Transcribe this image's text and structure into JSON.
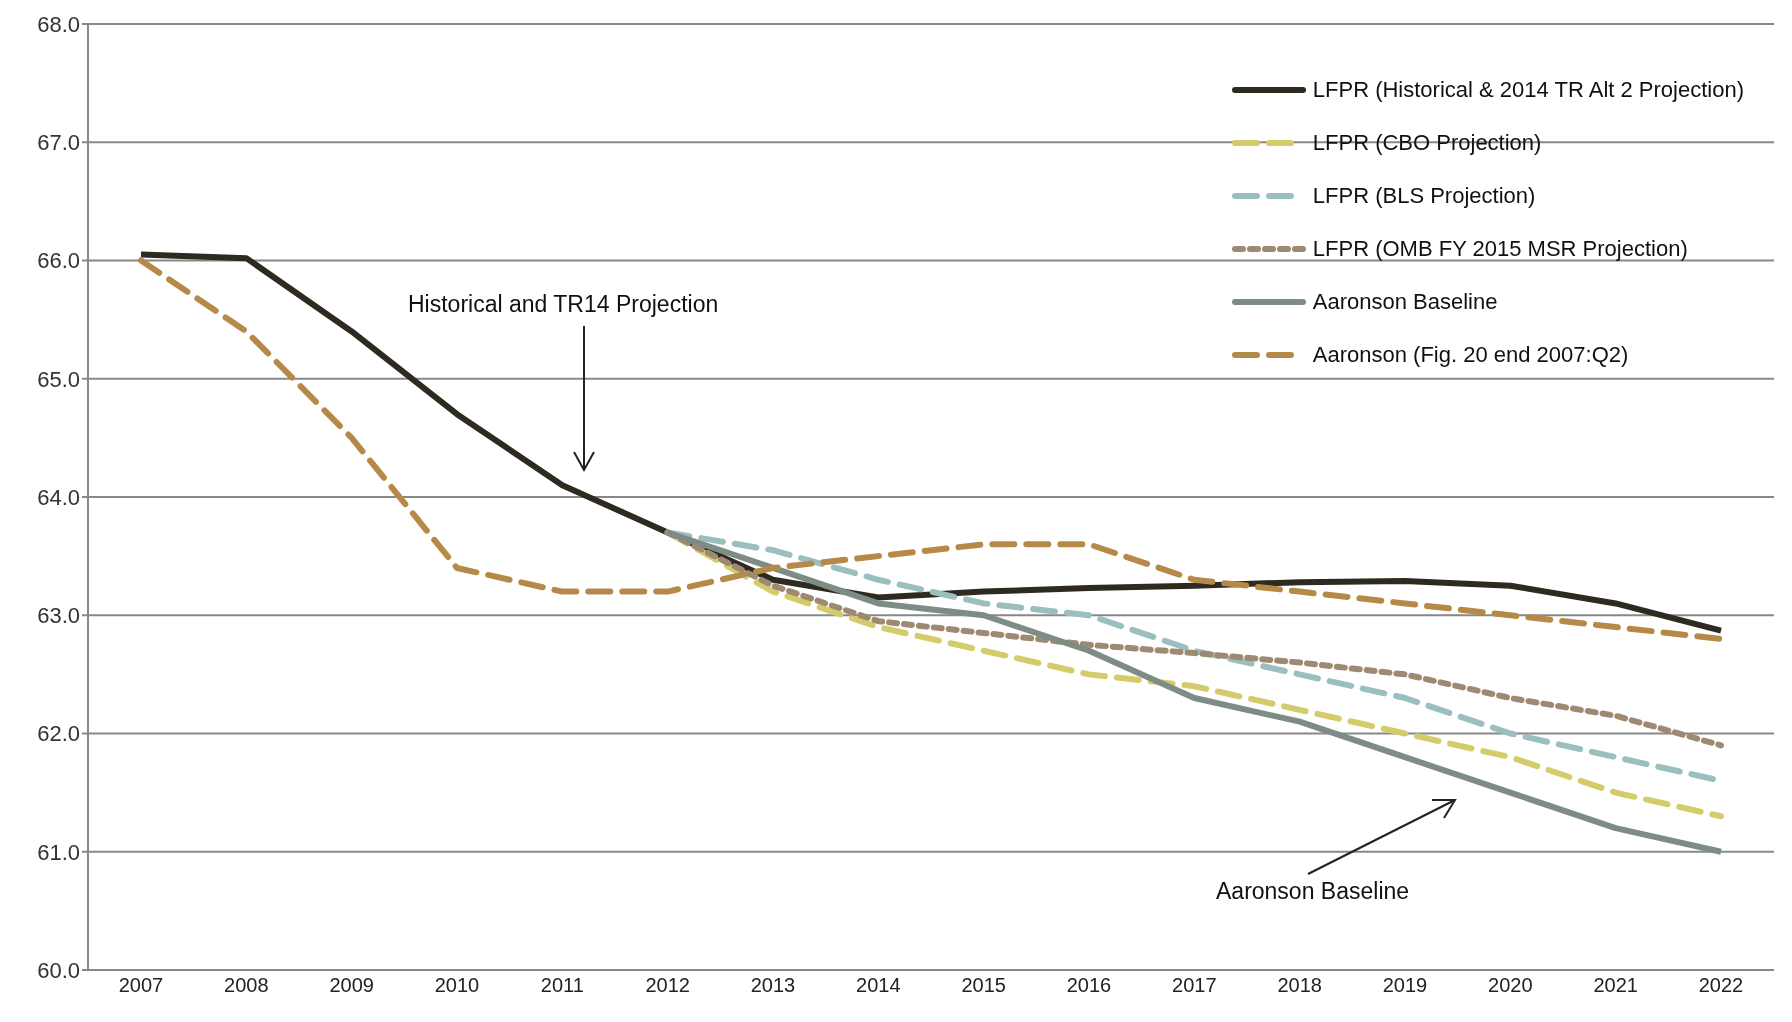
{
  "chart_data": {
    "type": "line",
    "categories": [
      "2007",
      "2008",
      "2009",
      "2010",
      "2011",
      "2012",
      "2013",
      "2014",
      "2015",
      "2016",
      "2017",
      "2018",
      "2019",
      "2020",
      "2021",
      "2022"
    ],
    "series": [
      {
        "name": "LFPR (Historical & 2014 TR Alt 2 Projection)",
        "color": "#2e2a20",
        "line_style": "solid",
        "values": [
          66.05,
          66.02,
          65.4,
          64.7,
          64.1,
          63.7,
          63.3,
          63.15,
          63.2,
          63.23,
          63.25,
          63.28,
          63.29,
          63.25,
          63.1,
          62.87
        ]
      },
      {
        "name": "LFPR (CBO Projection)",
        "color": "#d4cc6a",
        "line_style": "dashed",
        "values": [
          null,
          null,
          null,
          null,
          null,
          63.7,
          63.2,
          62.9,
          62.7,
          62.5,
          62.4,
          62.2,
          62.0,
          61.8,
          61.5,
          61.3
        ]
      },
      {
        "name": "LFPR (BLS Projection)",
        "color": "#9bbfbf",
        "line_style": "dashed",
        "values": [
          null,
          null,
          null,
          null,
          null,
          63.7,
          63.55,
          63.3,
          63.1,
          63.0,
          62.7,
          62.5,
          62.3,
          62.0,
          61.8,
          61.6
        ]
      },
      {
        "name": "LFPR (OMB FY 2015 MSR Projection)",
        "color": "#9e8a72",
        "line_style": "dotted",
        "values": [
          null,
          null,
          null,
          null,
          null,
          63.7,
          63.25,
          62.95,
          62.85,
          62.75,
          62.68,
          62.6,
          62.5,
          62.3,
          62.15,
          61.9
        ]
      },
      {
        "name": "Aaronson Baseline",
        "color": "#7d8c85",
        "line_style": "solid",
        "values": [
          null,
          null,
          null,
          null,
          null,
          63.7,
          63.4,
          63.1,
          63.0,
          62.7,
          62.3,
          62.1,
          61.8,
          61.5,
          61.2,
          61.0
        ]
      },
      {
        "name": "Aaronson (Fig. 20 end 2007:Q2)",
        "color": "#b58a48",
        "line_style": "dashed",
        "values": [
          66.0,
          65.4,
          64.5,
          63.4,
          63.2,
          63.2,
          63.4,
          63.5,
          63.6,
          63.6,
          63.3,
          63.2,
          63.1,
          63.0,
          62.9,
          62.8
        ]
      }
    ],
    "ylim": [
      60,
      68
    ],
    "yticks": [
      {
        "value": 60,
        "label": "60.0"
      },
      {
        "value": 61,
        "label": "61.0"
      },
      {
        "value": 62,
        "label": "62.0"
      },
      {
        "value": 63,
        "label": "63.0"
      },
      {
        "value": 64,
        "label": "64.0"
      },
      {
        "value": 65,
        "label": "65.0"
      },
      {
        "value": 66,
        "label": "66.0"
      },
      {
        "value": 67,
        "label": "67.0"
      },
      {
        "value": 68,
        "label": "68.0"
      }
    ],
    "grid": "y",
    "legend": "top right",
    "marker": "none",
    "annotations": [
      "Historical and TR14 Projection",
      "Aaronson Baseline"
    ]
  }
}
